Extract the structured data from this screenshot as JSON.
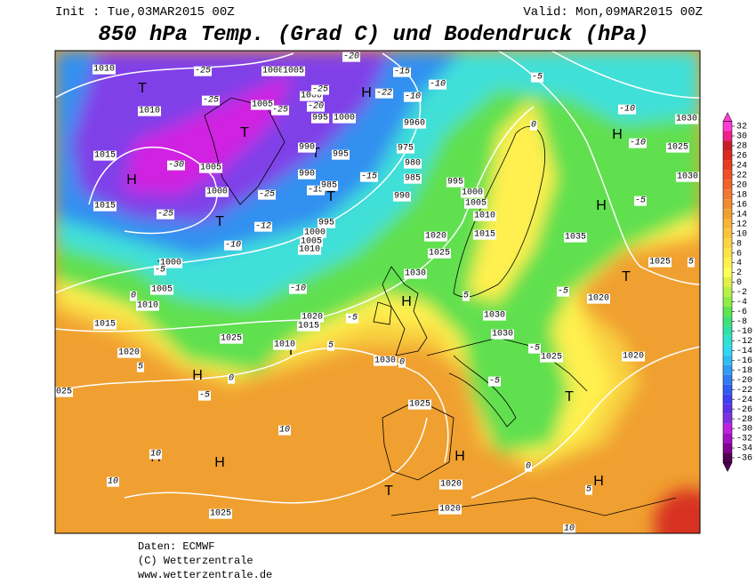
{
  "header": {
    "init": "Init : Tue,03MAR2015 00Z",
    "valid": "Valid: Mon,09MAR2015 00Z",
    "title": "850 hPa Temp. (Grad C) und Bodendruck (hPa)"
  },
  "map": {
    "labels": [
      "T",
      "T",
      "H",
      "T",
      "T",
      "T",
      "H",
      "T",
      "H",
      "T",
      "H",
      "H",
      "H",
      "T",
      "T",
      "H",
      "H",
      "H",
      "T",
      "H",
      "1010",
      "-25",
      "1000",
      "1005",
      "-20",
      "-15",
      "-10",
      "-5",
      "1010",
      "-25",
      "1005",
      "-25",
      "1000",
      "-25",
      "-20",
      "995",
      "1000",
      "-22",
      "-10",
      "9960",
      "0",
      "-10",
      "1030",
      "1015",
      "-30",
      "1005",
      "990",
      "995",
      "-15",
      "975",
      "980",
      "985",
      "-10",
      "1025",
      "1030",
      "995",
      "1000",
      "-25",
      "-15",
      "985",
      "990",
      "1000",
      "990",
      "1005",
      "1010",
      "-5",
      "1015",
      "-25",
      "-12",
      "995",
      "1000",
      "1005",
      "1010",
      "-10",
      "1020",
      "1015",
      "1035",
      "1025",
      "1000",
      "-5",
      "1005",
      "0",
      "1010",
      "-10",
      "1030",
      "5",
      "1025",
      "5",
      "-5",
      "1020",
      "1015",
      "1020",
      "1015",
      "-5",
      "1030",
      "1030",
      "1025",
      "1010",
      "5",
      "1020",
      "5",
      "1030",
      "0",
      "-5",
      "1025",
      "1020",
      "025",
      "-5",
      "0",
      "-5",
      "1025",
      "10",
      "10",
      "10",
      "1020",
      "0",
      "5",
      "1025",
      "1020",
      "10"
    ]
  },
  "colorbar": {
    "ticks": [
      32,
      30,
      28,
      26,
      24,
      22,
      20,
      18,
      16,
      14,
      12,
      10,
      8,
      6,
      4,
      2,
      0,
      -2,
      -4,
      -6,
      -8,
      -10,
      -12,
      -14,
      -16,
      -18,
      -20,
      -22,
      -24,
      -26,
      -28,
      -30,
      -32,
      -34,
      -36
    ],
    "colors": [
      "#ff3cd2",
      "#f0208c",
      "#c81e28",
      "#d82a20",
      "#e83c20",
      "#f05028",
      "#f06428",
      "#f07830",
      "#f08c30",
      "#f0a030",
      "#f5b434",
      "#f8c43c",
      "#fad444",
      "#fce448",
      "#fff050",
      "#ffff5a",
      "#e0f048",
      "#b8f048",
      "#90ec48",
      "#60e450",
      "#40e078",
      "#30e0a8",
      "#30e0d0",
      "#30d8f0",
      "#30bcf0",
      "#309cf0",
      "#307cf0",
      "#305cf0",
      "#4040f0",
      "#6030e8",
      "#8030e0",
      "#c020e0",
      "#a010c0",
      "#800090",
      "#500050"
    ]
  },
  "footer": {
    "lines": [
      "Daten: ECMWF",
      "(C) Wetterzentrale",
      "www.wetterzentrale.de"
    ]
  }
}
